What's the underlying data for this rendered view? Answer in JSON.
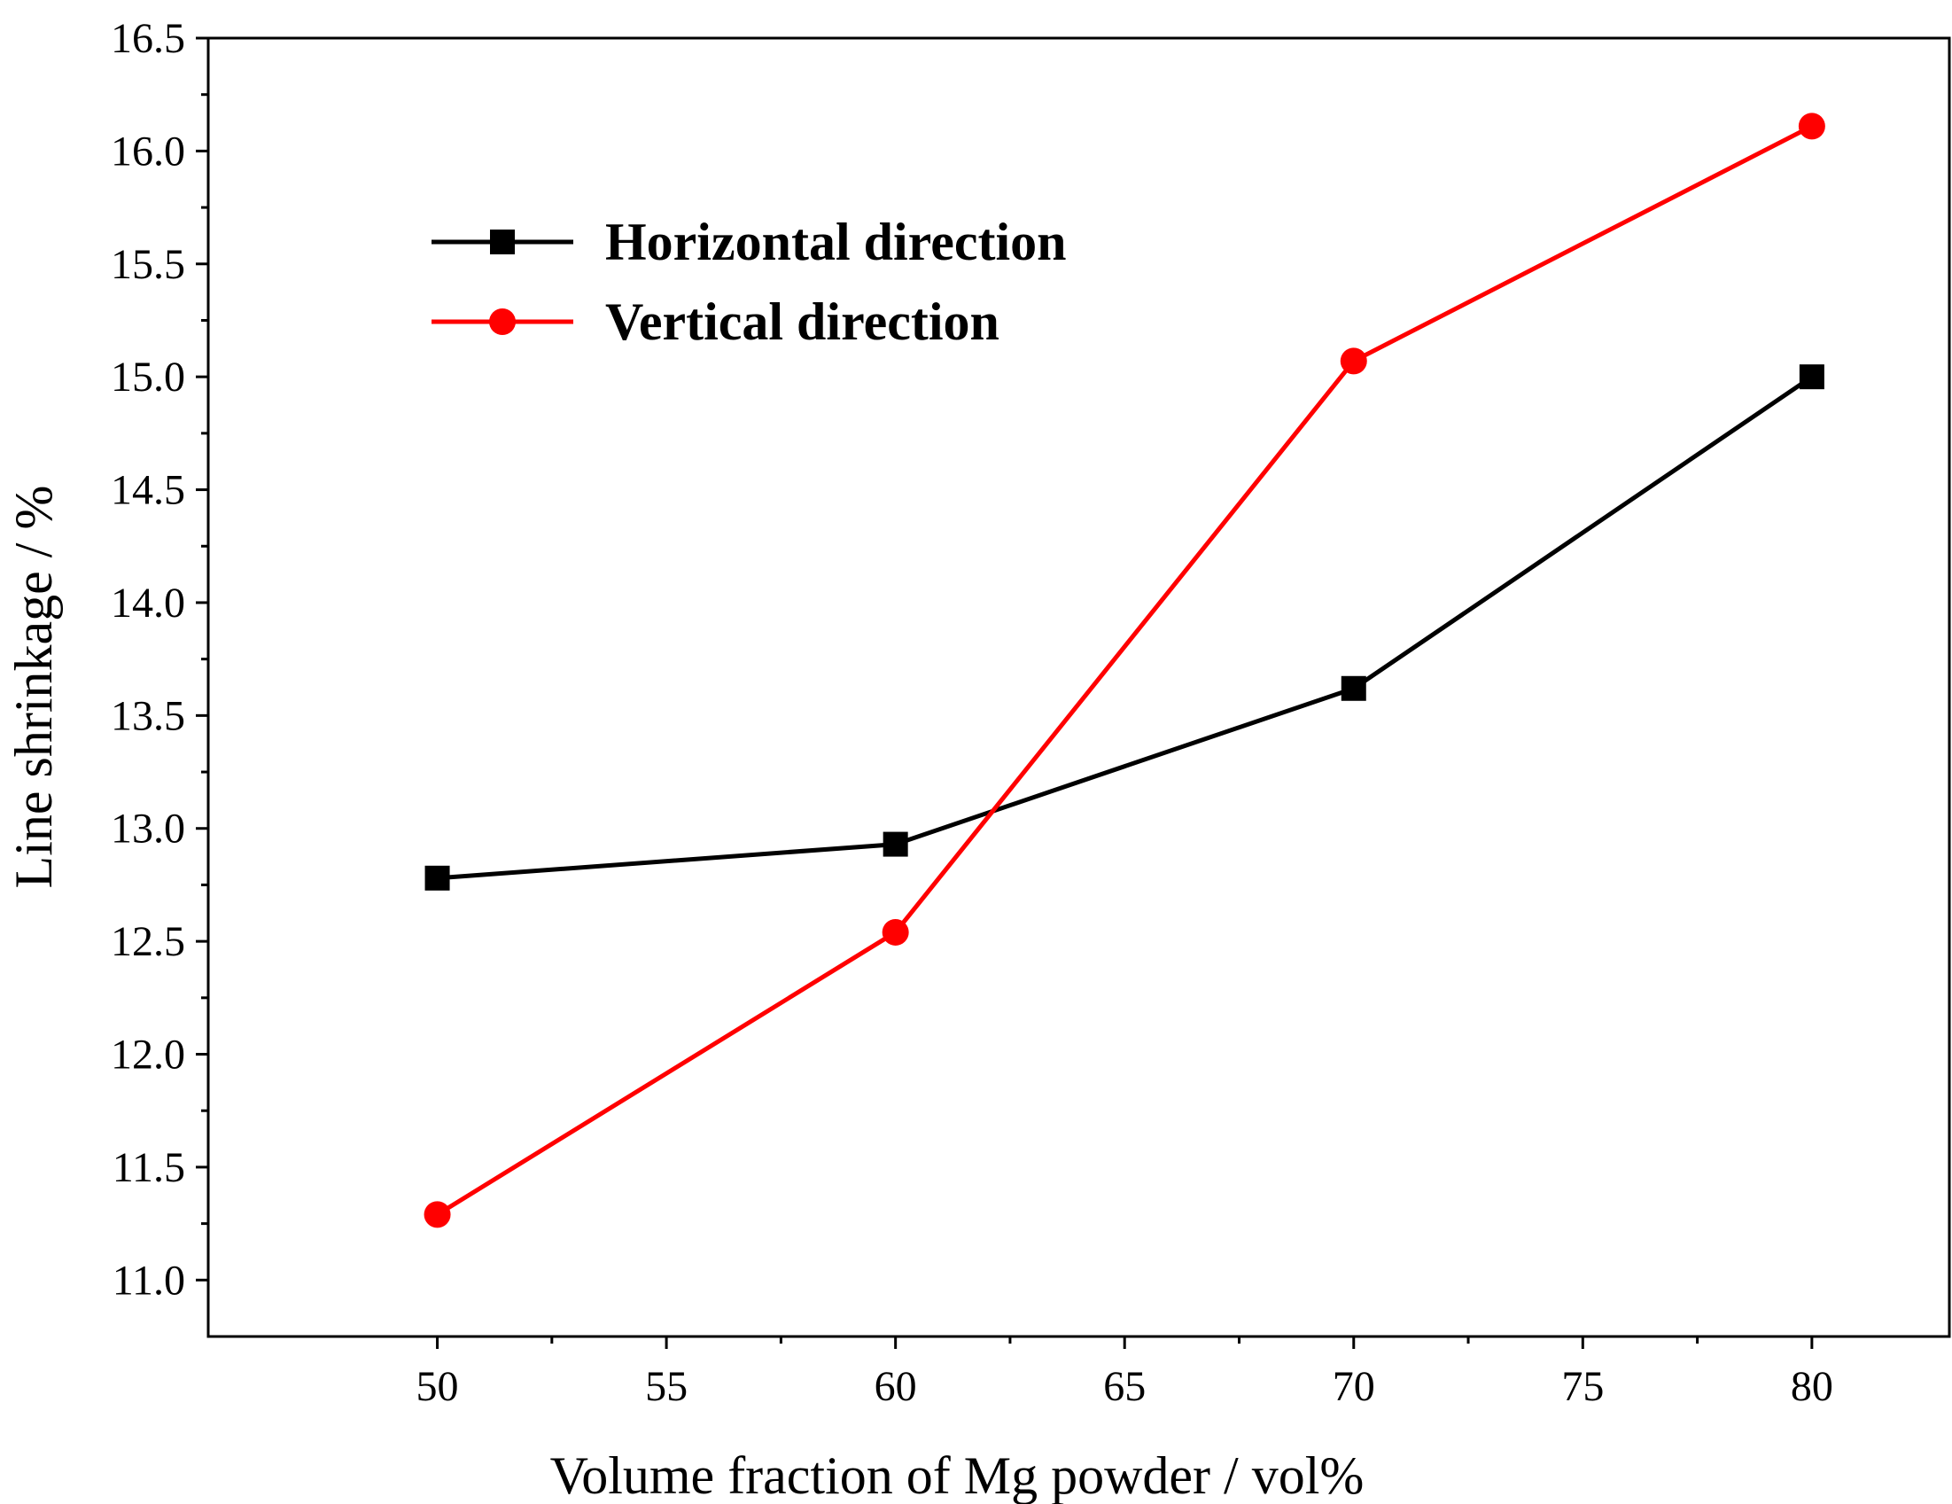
{
  "chart_data": {
    "type": "line",
    "title": "",
    "xlabel": "Volume fraction of Mg powder / vol%",
    "ylabel": "Line shrinkage / %",
    "xlim": [
      45,
      83
    ],
    "ylim": [
      10.75,
      16.5
    ],
    "x_ticks": [
      50,
      55,
      60,
      65,
      70,
      75,
      80
    ],
    "x_tick_labels": [
      "50",
      "55",
      "60",
      "65",
      "70",
      "75",
      "80"
    ],
    "y_ticks": [
      11.0,
      11.5,
      12.0,
      12.5,
      13.0,
      13.5,
      14.0,
      14.5,
      15.0,
      15.5,
      16.0,
      16.5
    ],
    "y_tick_labels": [
      "11.0",
      "11.5",
      "12.0",
      "12.5",
      "13.0",
      "13.5",
      "14.0",
      "14.5",
      "15.0",
      "15.5",
      "16.0",
      "16.5"
    ],
    "grid": false,
    "legend_position": "top-left",
    "series": [
      {
        "name": "Horizontal direction",
        "color": "#000000",
        "marker": "square",
        "x": [
          50,
          60,
          70,
          80
        ],
        "values": [
          12.78,
          12.93,
          13.62,
          15.0
        ]
      },
      {
        "name": "Vertical direction",
        "color": "#ff0000",
        "marker": "circle",
        "x": [
          50,
          60,
          70,
          80
        ],
        "values": [
          11.29,
          12.54,
          15.07,
          16.11
        ]
      }
    ]
  }
}
